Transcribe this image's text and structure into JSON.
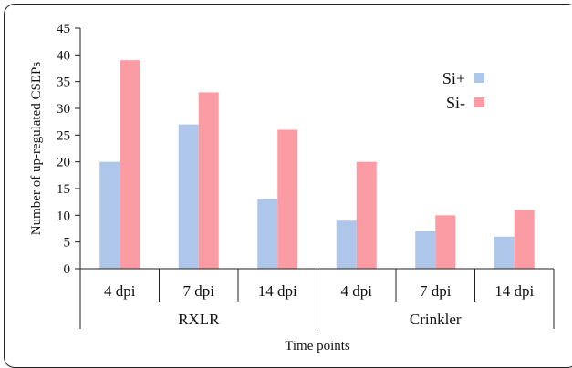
{
  "chart_data": {
    "type": "bar",
    "title": "",
    "xlabel": "Time points",
    "ylabel": "Number of up-regulated CSEPs",
    "ylim": [
      0,
      45
    ],
    "yticks": [
      0,
      5,
      10,
      15,
      20,
      25,
      30,
      35,
      40,
      45
    ],
    "categories": [
      "4 dpi",
      "7 dpi",
      "14 dpi",
      "4 dpi",
      "7 dpi",
      "14 dpi"
    ],
    "groups": [
      {
        "label": "RXLR",
        "categories": [
          "4 dpi",
          "7 dpi",
          "14 dpi"
        ]
      },
      {
        "label": "Crinkler",
        "categories": [
          "4 dpi",
          "7 dpi",
          "14 dpi"
        ]
      }
    ],
    "series": [
      {
        "name": "Si+",
        "color": "#aec6ea",
        "values": [
          20,
          27,
          13,
          9,
          7,
          6
        ]
      },
      {
        "name": "Si-",
        "color": "#fb9ba4",
        "values": [
          39,
          33,
          26,
          20,
          10,
          11
        ]
      }
    ],
    "legend": {
      "position": "top-right"
    },
    "grid": false
  }
}
